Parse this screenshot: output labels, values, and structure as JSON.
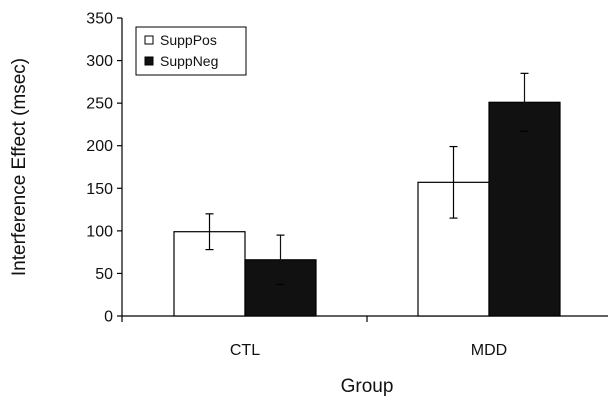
{
  "chart_data": {
    "type": "bar",
    "xlabel": "Group",
    "ylabel": "Interference Effect (msec)",
    "categories": [
      "CTL",
      "MDD"
    ],
    "ylim": [
      0,
      350
    ],
    "yticks": [
      0,
      50,
      100,
      150,
      200,
      250,
      300,
      350
    ],
    "grid": false,
    "legend_position": "top-left",
    "series": [
      {
        "name": "SuppPos",
        "values": [
          99,
          157
        ],
        "error": [
          21,
          42
        ],
        "color": "#ffffff"
      },
      {
        "name": "SuppNeg",
        "values": [
          66,
          251
        ],
        "error": [
          29,
          34
        ],
        "color": "#111111"
      }
    ]
  }
}
